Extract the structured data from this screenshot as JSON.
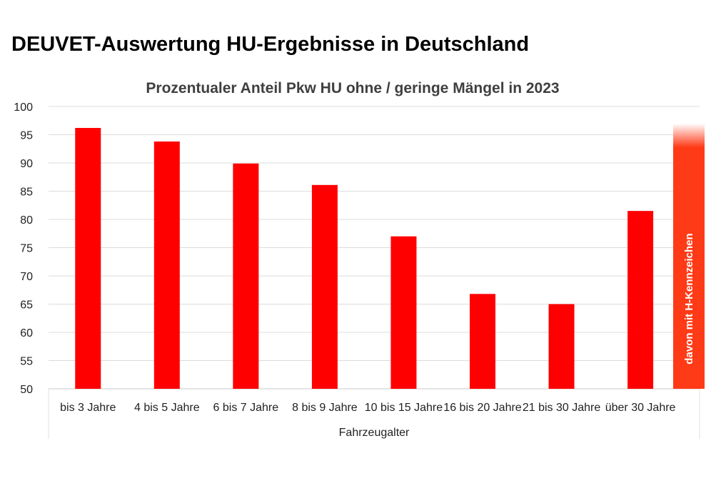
{
  "header": {
    "title": "DEUVET-Auswertung HU-Ergebnisse in Deutschland"
  },
  "chart_data": {
    "type": "bar",
    "title": "Prozentualer Anteil Pkw HU ohne / geringe Mängel in 2023",
    "xlabel": "Fahrzeugalter",
    "ylabel": "",
    "ylim": [
      50,
      100
    ],
    "yticks": [
      100,
      95,
      90,
      85,
      80,
      75,
      70,
      65,
      60,
      55,
      50
    ],
    "grid": true,
    "bar_color": "#ff0000",
    "categories": [
      "bis 3 Jahre",
      "4 bis 5 Jahre",
      "6 bis 7 Jahre",
      "8 bis 9 Jahre",
      "10 bis 15 Jahre",
      "16 bis 20 Jahre",
      "21 bis 30 Jahre",
      "über 30 Jahre"
    ],
    "values": [
      96.2,
      93.8,
      89.9,
      86.1,
      77.0,
      66.8,
      65.0,
      81.5
    ],
    "annotation": {
      "text": "davon mit H-Kennzeichen",
      "value": 97,
      "color": "#ff3a17"
    }
  }
}
